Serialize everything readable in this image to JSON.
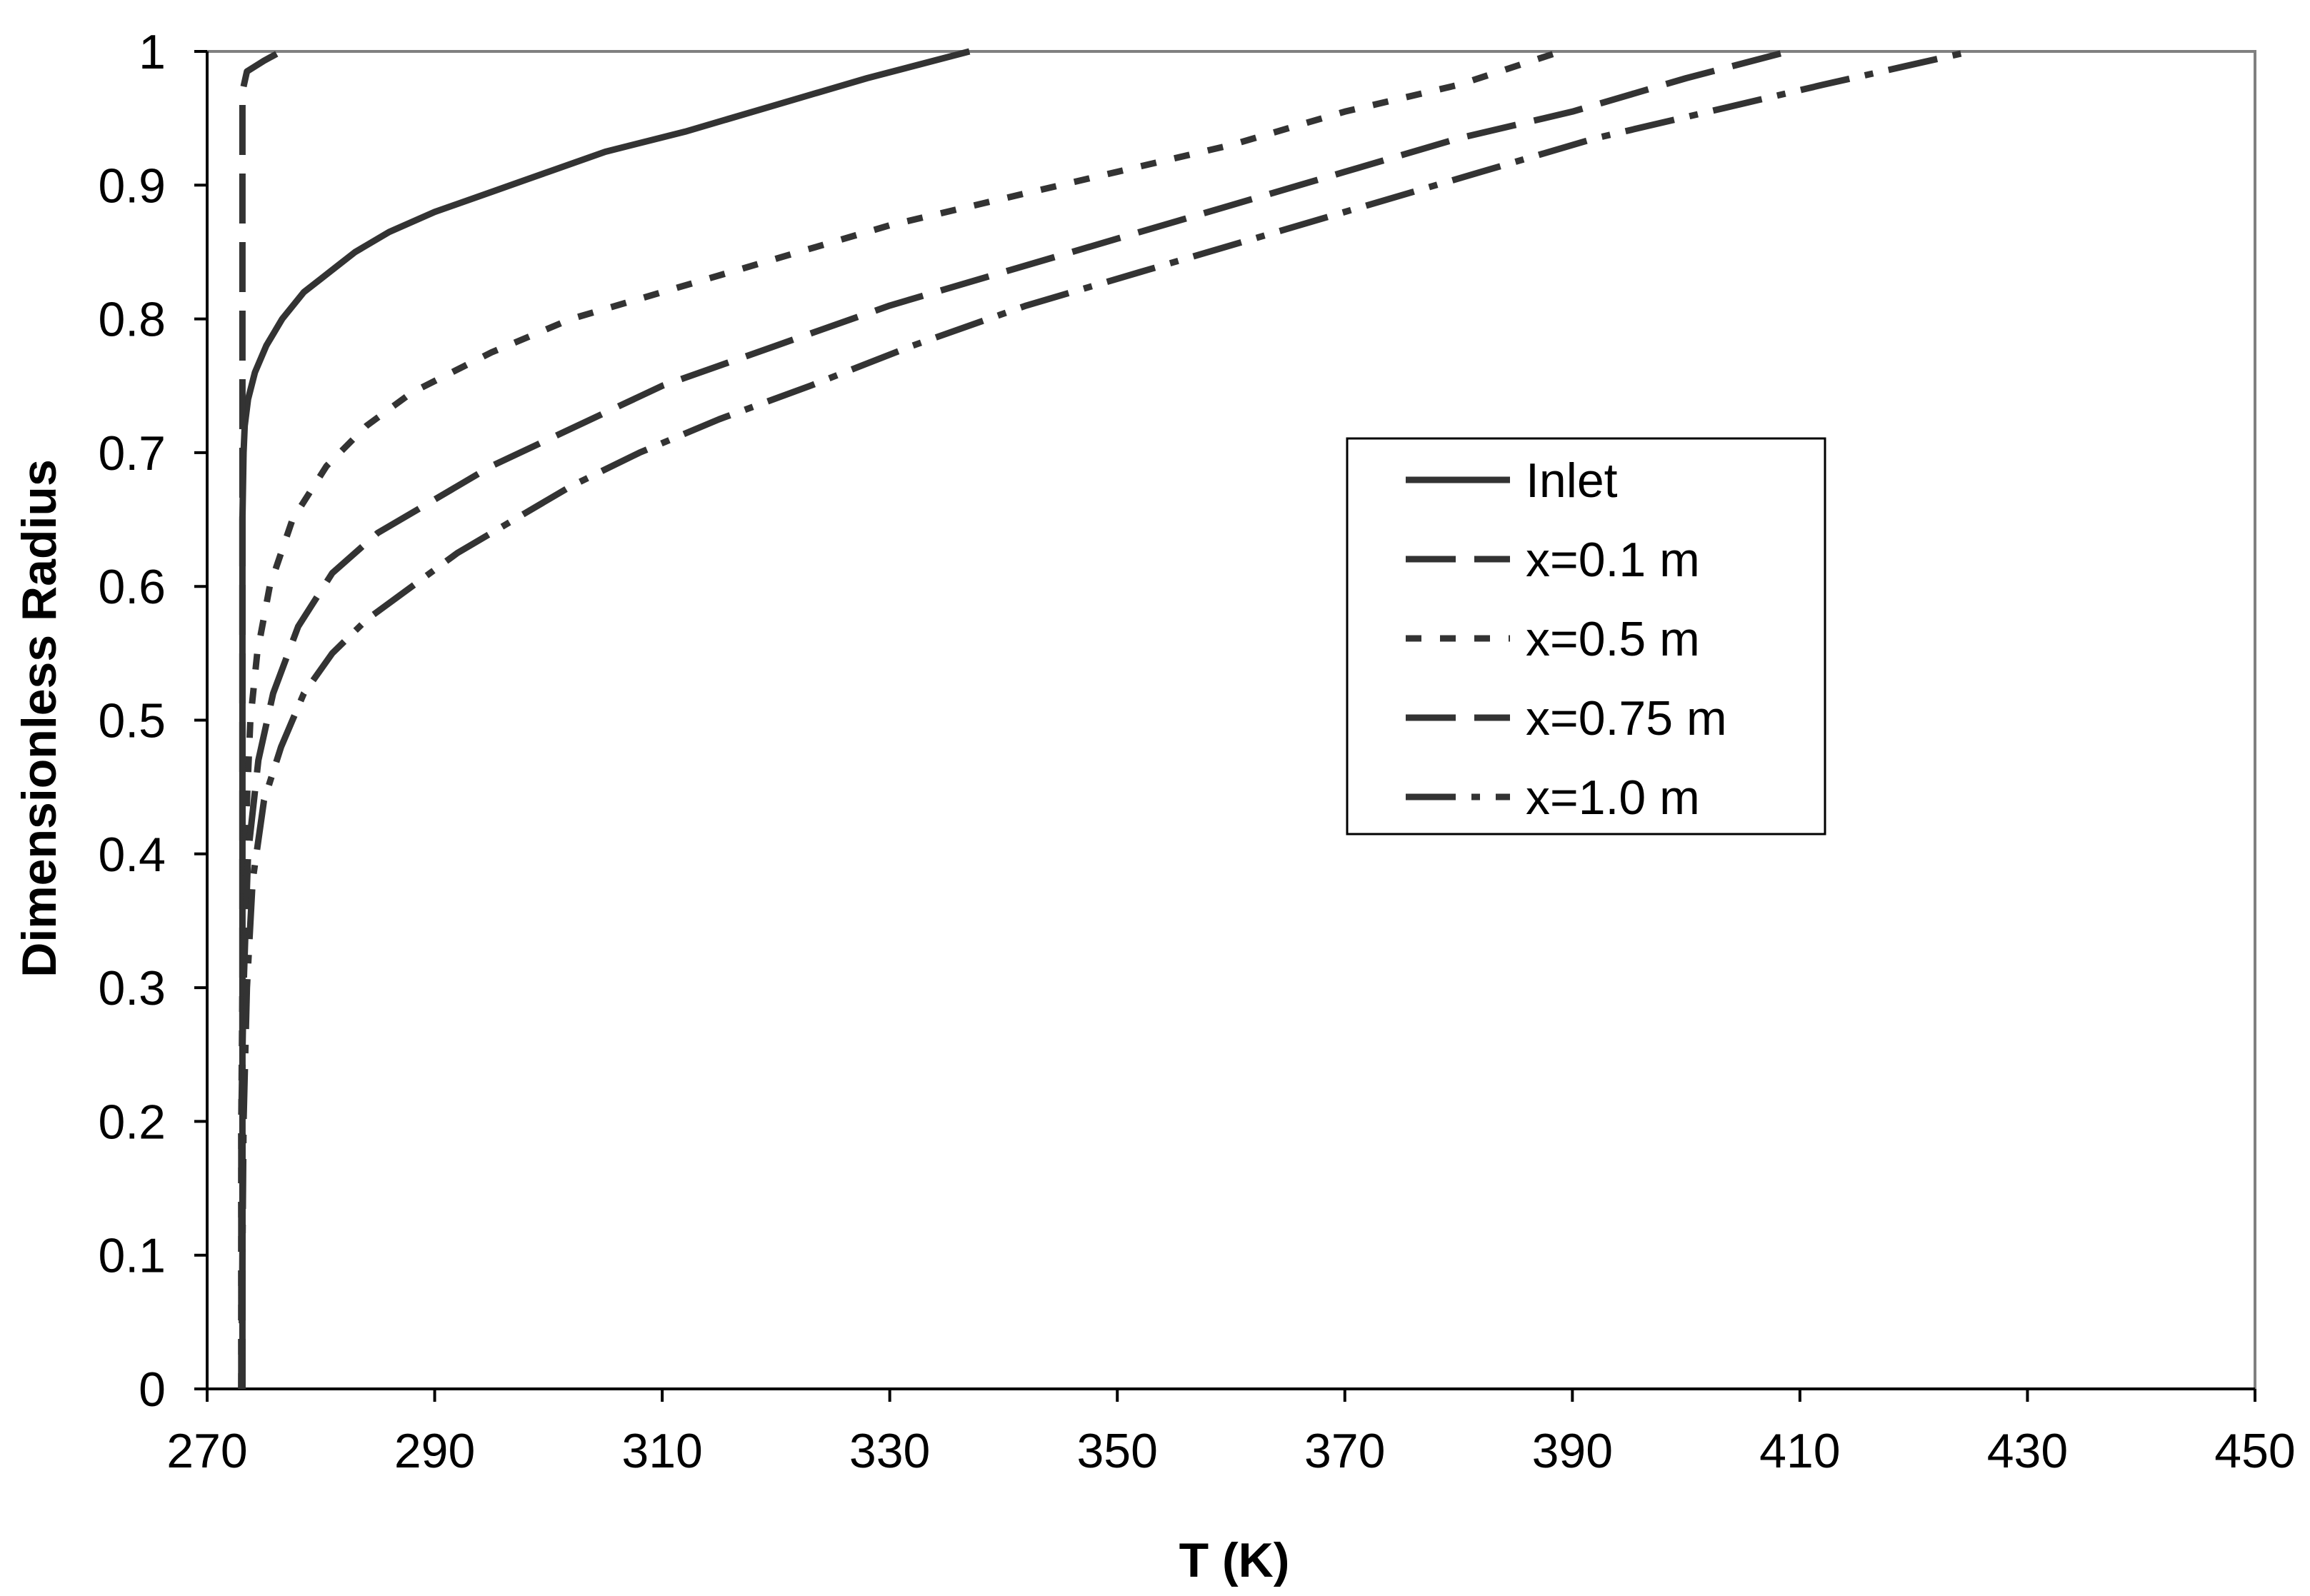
{
  "chart_data": {
    "type": "line",
    "title": "",
    "xlabel": "T (K)",
    "ylabel": "Dimensionless Radius",
    "xlim": [
      270,
      450
    ],
    "ylim": [
      0,
      1
    ],
    "x_ticks": [
      "270",
      "290",
      "310",
      "330",
      "350",
      "370",
      "390",
      "410",
      "430",
      "450"
    ],
    "y_ticks": [
      "0",
      "0.1",
      "0.2",
      "0.3",
      "0.4",
      "0.5",
      "0.6",
      "0.7",
      "0.8",
      "0.9",
      "1"
    ],
    "grid": false,
    "legend_position": "center-right",
    "colors": {
      "line": "#333333",
      "axis": "#000000",
      "plot_border": "#808080",
      "background": "#ffffff"
    },
    "series": [
      {
        "name": "Inlet",
        "style": "solid",
        "points": [
          [
            273.1,
            0
          ],
          [
            273.1,
            0.3
          ],
          [
            273.1,
            0.5
          ],
          [
            273.1,
            0.65
          ],
          [
            273.2,
            0.7
          ],
          [
            273.3,
            0.72
          ],
          [
            273.6,
            0.74
          ],
          [
            274.2,
            0.76
          ],
          [
            275.2,
            0.78
          ],
          [
            276.6,
            0.8
          ],
          [
            278.5,
            0.82
          ],
          [
            280,
            0.83
          ],
          [
            281.5,
            0.84
          ],
          [
            283,
            0.85
          ],
          [
            286,
            0.865
          ],
          [
            290,
            0.88
          ],
          [
            295,
            0.895
          ],
          [
            300,
            0.91
          ],
          [
            305,
            0.925
          ],
          [
            312,
            0.94
          ],
          [
            320,
            0.96
          ],
          [
            328,
            0.98
          ],
          [
            337,
            1.0
          ]
        ]
      },
      {
        "name": "x=0.1 m",
        "style": "long-dash",
        "points": [
          [
            273.1,
            0
          ],
          [
            273.1,
            0.97
          ],
          [
            273.5,
            0.985
          ],
          [
            275,
            0.993
          ],
          [
            276.5,
            1.0
          ]
        ]
      },
      {
        "name": "x=0.5 m",
        "style": "short-dash",
        "points": [
          [
            273,
            0
          ],
          [
            273,
            0.2
          ],
          [
            273.1,
            0.3
          ],
          [
            273.3,
            0.4
          ],
          [
            273.8,
            0.5
          ],
          [
            274.4,
            0.55
          ],
          [
            275.5,
            0.6
          ],
          [
            277.5,
            0.65
          ],
          [
            280.5,
            0.69
          ],
          [
            284,
            0.72
          ],
          [
            288,
            0.745
          ],
          [
            295,
            0.775
          ],
          [
            302,
            0.8
          ],
          [
            310,
            0.82
          ],
          [
            320,
            0.845
          ],
          [
            330,
            0.87
          ],
          [
            340,
            0.89
          ],
          [
            350,
            0.91
          ],
          [
            360,
            0.93
          ],
          [
            370,
            0.955
          ],
          [
            380,
            0.975
          ],
          [
            389,
            1.0
          ]
        ]
      },
      {
        "name": "x=0.75 m",
        "style": "long-dash",
        "points": [
          [
            273,
            0
          ],
          [
            273,
            0.2
          ],
          [
            273.2,
            0.3
          ],
          [
            273.6,
            0.4
          ],
          [
            274.5,
            0.47
          ],
          [
            275.8,
            0.52
          ],
          [
            278,
            0.57
          ],
          [
            281,
            0.61
          ],
          [
            285,
            0.64
          ],
          [
            290,
            0.665
          ],
          [
            295,
            0.69
          ],
          [
            300,
            0.71
          ],
          [
            305,
            0.73
          ],
          [
            310,
            0.75
          ],
          [
            320,
            0.78
          ],
          [
            330,
            0.81
          ],
          [
            340,
            0.835
          ],
          [
            350,
            0.86
          ],
          [
            360,
            0.885
          ],
          [
            370,
            0.91
          ],
          [
            380,
            0.935
          ],
          [
            390,
            0.955
          ],
          [
            400,
            0.98
          ],
          [
            409,
            1.0
          ]
        ]
      },
      {
        "name": "x=1.0 m",
        "style": "dash-dot",
        "points": [
          [
            273,
            0
          ],
          [
            273.2,
            0.2
          ],
          [
            273.5,
            0.3
          ],
          [
            274,
            0.38
          ],
          [
            275,
            0.44
          ],
          [
            276.5,
            0.48
          ],
          [
            278.5,
            0.52
          ],
          [
            281,
            0.55
          ],
          [
            284,
            0.575
          ],
          [
            288,
            0.6
          ],
          [
            292,
            0.625
          ],
          [
            297,
            0.65
          ],
          [
            302,
            0.675
          ],
          [
            308,
            0.7
          ],
          [
            315,
            0.725
          ],
          [
            323,
            0.75
          ],
          [
            332,
            0.78
          ],
          [
            342,
            0.81
          ],
          [
            352,
            0.835
          ],
          [
            362,
            0.86
          ],
          [
            372,
            0.885
          ],
          [
            382,
            0.91
          ],
          [
            392,
            0.935
          ],
          [
            402,
            0.955
          ],
          [
            412,
            0.975
          ],
          [
            425,
            1.0
          ]
        ]
      }
    ]
  }
}
